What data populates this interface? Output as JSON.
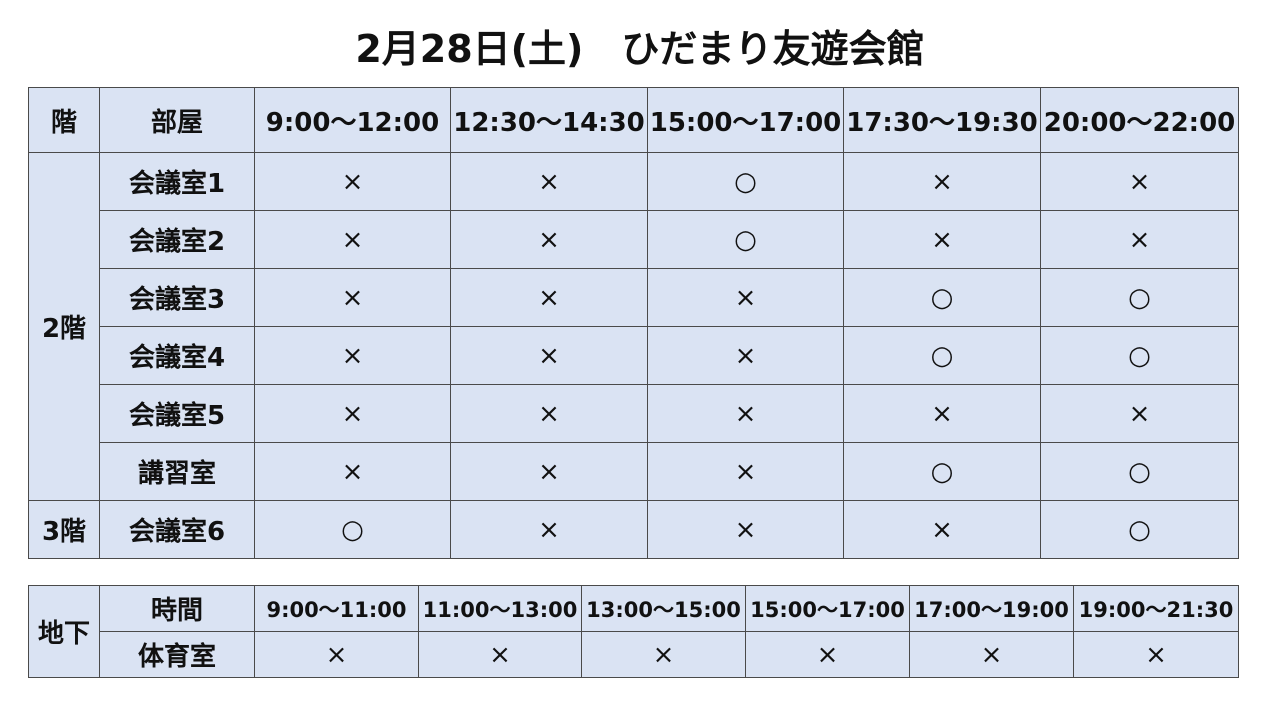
{
  "title": "2月28日(土)　ひだまり友遊会館",
  "main": {
    "headers": [
      "階",
      "部屋",
      "9:00〜12:00",
      "12:30〜14:30",
      "15:00〜17:00",
      "17:30〜19:30",
      "20:00〜22:00"
    ],
    "rows": [
      {
        "floor": "2階",
        "room": "会議室1",
        "status": [
          "×",
          "×",
          "○",
          "×",
          "×"
        ]
      },
      {
        "floor": "2階",
        "room": "会議室2",
        "status": [
          "×",
          "×",
          "○",
          "×",
          "×"
        ]
      },
      {
        "floor": "2階",
        "room": "会議室3",
        "status": [
          "×",
          "×",
          "×",
          "○",
          "○"
        ]
      },
      {
        "floor": "2階",
        "room": "会議室4",
        "status": [
          "×",
          "×",
          "×",
          "○",
          "○"
        ]
      },
      {
        "floor": "2階",
        "room": "会議室5",
        "status": [
          "×",
          "×",
          "×",
          "×",
          "×"
        ]
      },
      {
        "floor": "2階",
        "room": "講習室",
        "status": [
          "×",
          "×",
          "×",
          "○",
          "○"
        ]
      },
      {
        "floor": "3階",
        "room": "会議室6",
        "status": [
          "○",
          "×",
          "×",
          "×",
          "○"
        ]
      }
    ]
  },
  "basement": {
    "floor": "地下",
    "time_label": "時間",
    "times": [
      "9:00〜11:00",
      "11:00〜13:00",
      "13:00〜15:00",
      "15:00〜17:00",
      "17:00〜19:00",
      "19:00〜21:30"
    ],
    "room": "体育室",
    "status": [
      "×",
      "×",
      "×",
      "×",
      "×",
      "×"
    ]
  },
  "colors": {
    "cell_background": "#dae3f3",
    "border": "#4a4a4a"
  }
}
